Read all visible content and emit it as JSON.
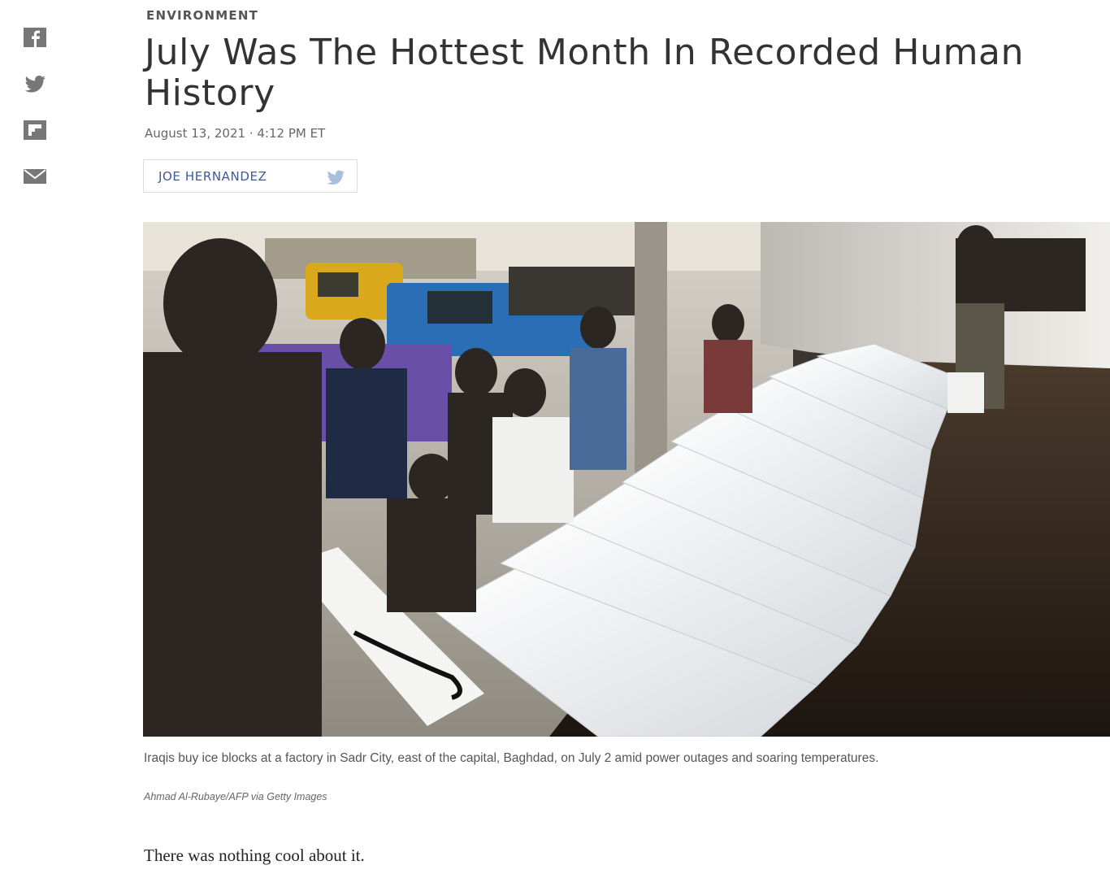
{
  "share": {
    "items": [
      {
        "name": "facebook",
        "icon": "facebook-icon"
      },
      {
        "name": "twitter",
        "icon": "twitter-icon"
      },
      {
        "name": "flipboard",
        "icon": "flipboard-icon"
      },
      {
        "name": "email",
        "icon": "email-icon"
      }
    ],
    "icon_color": "#777777"
  },
  "article": {
    "section": "ENVIRONMENT",
    "headline": "July Was The Hottest Month In Recorded Human History",
    "dateline": "August 13, 2021 · 4:12 PM ET",
    "byline": {
      "author": "JOE HERNANDEZ",
      "icon": "twitter-icon",
      "color": "#3b5a9a"
    },
    "photo": {
      "caption": "Iraqis buy ice blocks at a factory in Sadr City, east of the capital, Baghdad, on July 2 amid power outages and soaring temperatures.",
      "credit": "Ahmad Al-Rubaye/AFP via Getty Images"
    },
    "body": {
      "first_paragraph": "There was nothing cool about it."
    }
  }
}
